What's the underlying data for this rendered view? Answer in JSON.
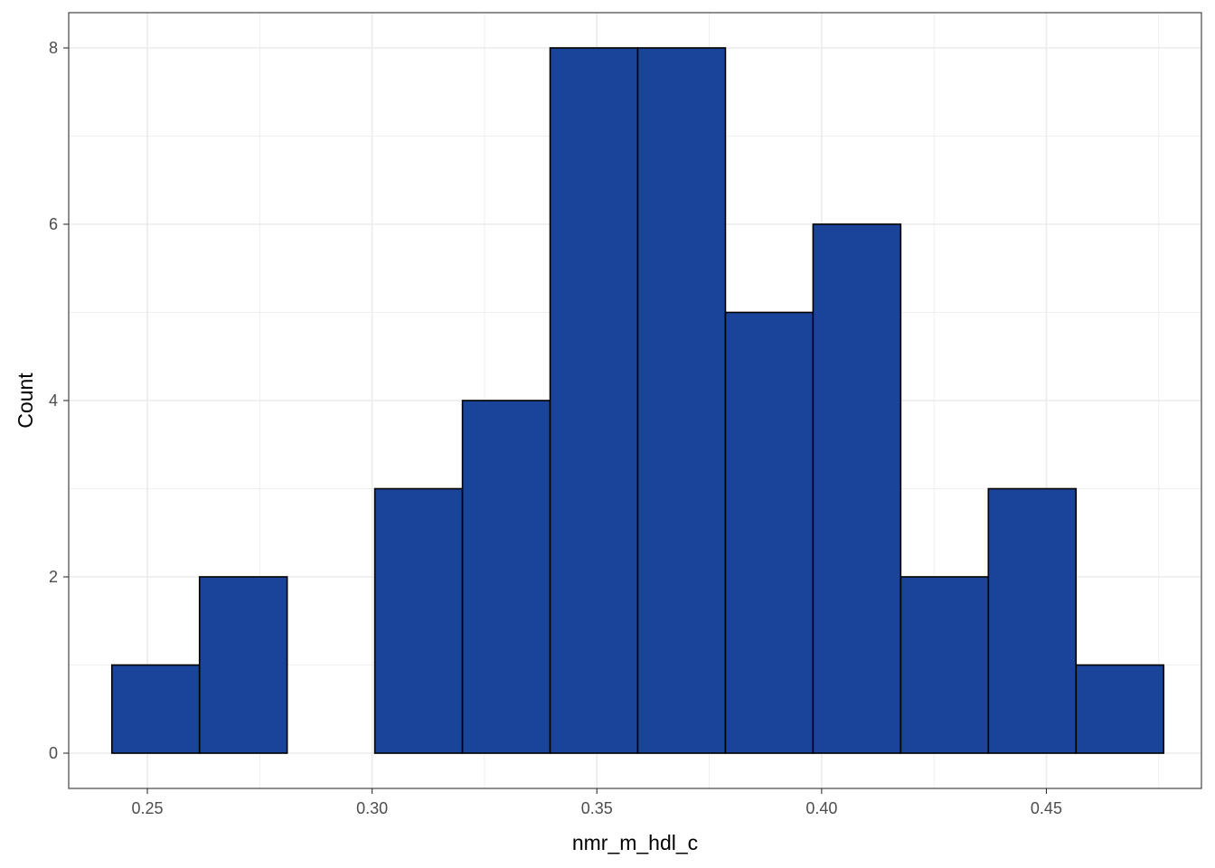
{
  "chart_data": {
    "type": "histogram",
    "xlabel": "nmr_m_hdl_c",
    "ylabel": "Count",
    "xlim": [
      0.2325,
      0.4845
    ],
    "ylim": [
      -0.4,
      8.4
    ],
    "x_ticks": [
      0.25,
      0.3,
      0.35,
      0.4,
      0.45
    ],
    "x_tick_labels": [
      "0.25",
      "0.30",
      "0.35",
      "0.40",
      "0.45"
    ],
    "y_ticks": [
      0,
      2,
      4,
      6,
      8
    ],
    "y_tick_labels": [
      "0",
      "2",
      "4",
      "6",
      "8"
    ],
    "bin_edges": [
      0.2421,
      0.2616,
      0.2811,
      0.3006,
      0.3201,
      0.3396,
      0.3591,
      0.3786,
      0.3981,
      0.4176,
      0.4371,
      0.4566,
      0.4761
    ],
    "counts": [
      1,
      2,
      0,
      3,
      4,
      8,
      8,
      5,
      6,
      2,
      3,
      1
    ],
    "grid": true,
    "bar_fill": "#194499",
    "bar_stroke": "#000000",
    "grid_color": "#ebebeb"
  }
}
